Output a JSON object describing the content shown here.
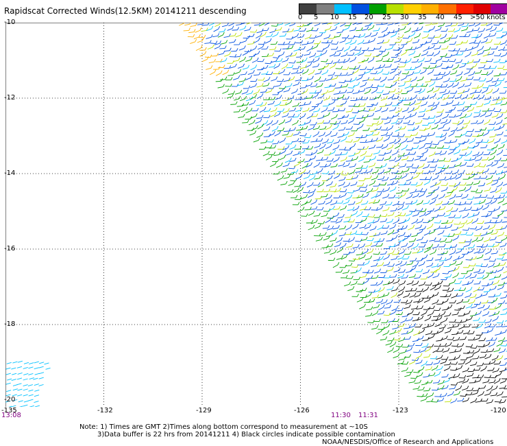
{
  "title": "Rapidscat Corrected Winds(12.5KM) 20141211 descending",
  "legend": {
    "colors": [
      "#404040",
      "#808080",
      "#00c0ff",
      "#0050e0",
      "#00a000",
      "#b8e000",
      "#ffd000",
      "#ffb000",
      "#ff7000",
      "#ff2000",
      "#e00000",
      "#a000a0",
      "#500080"
    ],
    "labels": [
      "0",
      "5",
      "10",
      "15",
      "20",
      "25",
      "30",
      "35",
      "40",
      "45",
      ">50 knots"
    ]
  },
  "lat_labels": [
    "-10",
    "-12",
    "-14",
    "-16",
    "-18",
    "-20"
  ],
  "lon_labels": [
    "-135",
    "-132",
    "-129",
    "-126",
    "-123",
    "-120"
  ],
  "time_labels": [
    "13:08",
    "11:30",
    "11:31"
  ],
  "notes": {
    "line1": "Note: 1) Times are GMT 2)Times along bottom correspond to measurement at ~10S",
    "line2": "3)Data buffer is 22 hrs from 20141211 4) Black circles indicate possible contamination",
    "line3": "NOAA/NESDIS/Office of Research and Applications"
  }
}
